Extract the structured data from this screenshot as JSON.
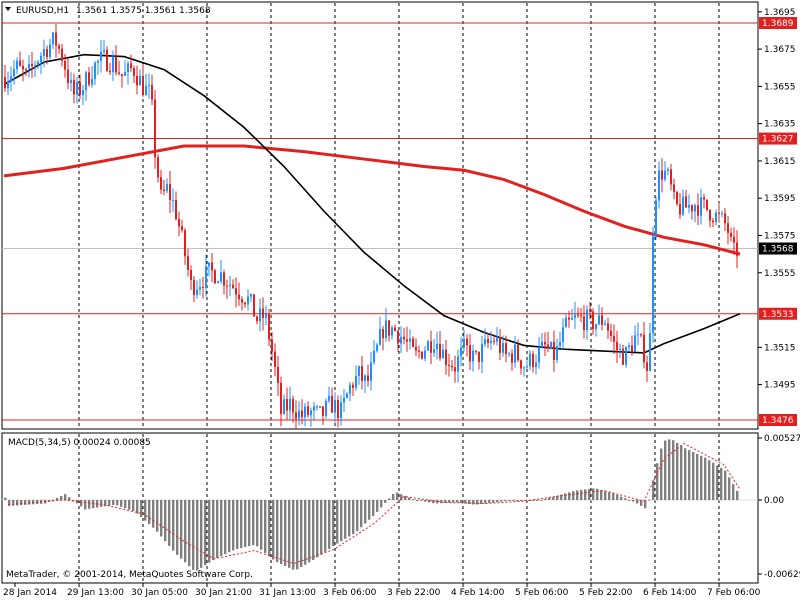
{
  "window": {
    "title": "EURUSD,H1",
    "ohlc": "1.3561 1.3575 1.3561 1.3568",
    "copyright": "MetaTrader, © 2001-2014, MetaQuotes Software Corp."
  },
  "chart_data": {
    "type": "candlestick",
    "symbol": "EURUSD",
    "timeframe": "H1",
    "grid": true,
    "price_axis": {
      "ylim": [
        1.3465,
        1.3702
      ],
      "ticks": [
        "1.3695",
        "1.3675",
        "1.3655",
        "1.3635",
        "1.3615",
        "1.3595",
        "1.3575",
        "1.3555",
        "1.3515",
        "1.3495"
      ]
    },
    "time_axis": {
      "ticks": [
        "28 Jan 2014",
        "29 Jan 13:00",
        "30 Jan 05:00",
        "30 Jan 21:00",
        "31 Jan 13:00",
        "3 Feb 06:00",
        "3 Feb 22:00",
        "4 Feb 14:00",
        "5 Feb 06:00",
        "5 Feb 22:00",
        "6 Feb 14:00",
        "7 Feb 06:00"
      ]
    },
    "horizontal_levels": [
      {
        "value": 1.3689,
        "label": "1.3689",
        "color": "#e32020"
      },
      {
        "value": 1.3627,
        "label": "1.3627",
        "color": "#e32020"
      },
      {
        "value": 1.3533,
        "label": "1.3533",
        "color": "#e32020"
      },
      {
        "value": 1.3476,
        "label": "1.3476",
        "color": "#e32020"
      }
    ],
    "current_price": {
      "value": 1.3568,
      "label": "1.3568"
    },
    "close_path": [
      [
        0,
        1.366
      ],
      [
        12,
        1.3665
      ],
      [
        22,
        1.366
      ],
      [
        30,
        1.3668
      ],
      [
        40,
        1.3675
      ],
      [
        50,
        1.368
      ],
      [
        58,
        1.367
      ],
      [
        68,
        1.365
      ],
      [
        78,
        1.3655
      ],
      [
        88,
        1.3665
      ],
      [
        98,
        1.367
      ],
      [
        108,
        1.3668
      ],
      [
        118,
        1.366
      ],
      [
        128,
        1.3665
      ],
      [
        138,
        1.3655
      ],
      [
        146,
        1.365
      ],
      [
        150,
        1.362
      ],
      [
        156,
        1.3595
      ],
      [
        162,
        1.36
      ],
      [
        170,
        1.359
      ],
      [
        178,
        1.357
      ],
      [
        186,
        1.3548
      ],
      [
        194,
        1.355
      ],
      [
        204,
        1.3555
      ],
      [
        214,
        1.3555
      ],
      [
        224,
        1.355
      ],
      [
        234,
        1.3545
      ],
      [
        244,
        1.354
      ],
      [
        252,
        1.353
      ],
      [
        260,
        1.3532
      ],
      [
        268,
        1.351
      ],
      [
        276,
        1.348
      ],
      [
        286,
        1.3485
      ],
      [
        296,
        1.3478
      ],
      [
        306,
        1.348
      ],
      [
        316,
        1.3478
      ],
      [
        326,
        1.3485
      ],
      [
        336,
        1.348
      ],
      [
        346,
        1.3495
      ],
      [
        354,
        1.35
      ],
      [
        362,
        1.3495
      ],
      [
        370,
        1.351
      ],
      [
        378,
        1.3525
      ],
      [
        388,
        1.3525
      ],
      [
        398,
        1.352
      ],
      [
        410,
        1.351
      ],
      [
        420,
        1.3515
      ],
      [
        430,
        1.352
      ],
      [
        440,
        1.351
      ],
      [
        450,
        1.3505
      ],
      [
        460,
        1.3515
      ],
      [
        470,
        1.3508
      ],
      [
        480,
        1.3515
      ],
      [
        490,
        1.352
      ],
      [
        500,
        1.351
      ],
      [
        510,
        1.3512
      ],
      [
        520,
        1.3505
      ],
      [
        530,
        1.351
      ],
      [
        540,
        1.3515
      ],
      [
        550,
        1.351
      ],
      [
        560,
        1.3525
      ],
      [
        570,
        1.353
      ],
      [
        580,
        1.353
      ],
      [
        590,
        1.3528
      ],
      [
        600,
        1.353
      ],
      [
        610,
        1.3515
      ],
      [
        620,
        1.351
      ],
      [
        630,
        1.352
      ],
      [
        638,
        1.3515
      ],
      [
        644,
        1.35
      ],
      [
        648,
        1.358
      ],
      [
        652,
        1.3605
      ],
      [
        658,
        1.361
      ],
      [
        664,
        1.3605
      ],
      [
        670,
        1.359
      ],
      [
        680,
        1.359
      ],
      [
        690,
        1.3592
      ],
      [
        700,
        1.359
      ],
      [
        712,
        1.3585
      ],
      [
        722,
        1.358
      ],
      [
        728,
        1.3565
      ],
      [
        734,
        1.3568
      ]
    ],
    "ma_black": [
      [
        0,
        1.3656
      ],
      [
        40,
        1.3668
      ],
      [
        80,
        1.3672
      ],
      [
        120,
        1.3671
      ],
      [
        160,
        1.3664
      ],
      [
        200,
        1.365
      ],
      [
        240,
        1.3633
      ],
      [
        280,
        1.3612
      ],
      [
        320,
        1.3588
      ],
      [
        360,
        1.3566
      ],
      [
        400,
        1.3548
      ],
      [
        440,
        1.3532
      ],
      [
        480,
        1.3523
      ],
      [
        520,
        1.3516
      ],
      [
        560,
        1.3514
      ],
      [
        600,
        1.3513
      ],
      [
        640,
        1.3512
      ],
      [
        660,
        1.3517
      ],
      [
        700,
        1.3525
      ],
      [
        736,
        1.3533
      ]
    ],
    "ma_red": [
      [
        0,
        1.3607
      ],
      [
        60,
        1.3611
      ],
      [
        120,
        1.3617
      ],
      [
        180,
        1.3623
      ],
      [
        240,
        1.3623
      ],
      [
        300,
        1.362
      ],
      [
        360,
        1.3616
      ],
      [
        420,
        1.3612
      ],
      [
        460,
        1.361
      ],
      [
        500,
        1.3605
      ],
      [
        540,
        1.3597
      ],
      [
        580,
        1.3588
      ],
      [
        620,
        1.358
      ],
      [
        660,
        1.3574
      ],
      [
        700,
        1.357
      ],
      [
        736,
        1.3565
      ]
    ],
    "macd": {
      "label": "MACD(5,34,5) 0.00024 0.00085",
      "ylim": [
        -0.0065,
        0.0055
      ],
      "ticks": [
        "0.00527",
        "0.00",
        "-0.00629"
      ],
      "histogram": [
        [
          4,
          -0.0005
        ],
        [
          40,
          -0.0003
        ],
        [
          60,
          0.0005
        ],
        [
          80,
          -0.0008
        ],
        [
          110,
          -0.0004
        ],
        [
          130,
          -0.001
        ],
        [
          150,
          -0.0025
        ],
        [
          170,
          -0.0045
        ],
        [
          190,
          -0.0061
        ],
        [
          210,
          -0.005
        ],
        [
          230,
          -0.0042
        ],
        [
          250,
          -0.0038
        ],
        [
          270,
          -0.0052
        ],
        [
          290,
          -0.006
        ],
        [
          310,
          -0.005
        ],
        [
          330,
          -0.0038
        ],
        [
          350,
          -0.0028
        ],
        [
          370,
          -0.0012
        ],
        [
          390,
          0.0007
        ],
        [
          410,
          0.0
        ],
        [
          430,
          -0.0003
        ],
        [
          450,
          -0.0002
        ],
        [
          470,
          -0.0004
        ],
        [
          490,
          -0.0002
        ],
        [
          510,
          0.0
        ],
        [
          530,
          -0.0001
        ],
        [
          550,
          0.0003
        ],
        [
          570,
          0.0008
        ],
        [
          590,
          0.001
        ],
        [
          610,
          0.0005
        ],
        [
          630,
          -0.0002
        ],
        [
          642,
          -0.0008
        ],
        [
          650,
          0.0025
        ],
        [
          658,
          0.005
        ],
        [
          666,
          0.0052
        ],
        [
          680,
          0.0044
        ],
        [
          700,
          0.0036
        ],
        [
          720,
          0.0025
        ],
        [
          736,
          0.0002
        ]
      ],
      "signal": [
        [
          4,
          -0.0004
        ],
        [
          60,
          0.0
        ],
        [
          100,
          -0.0004
        ],
        [
          140,
          -0.0012
        ],
        [
          180,
          -0.0035
        ],
        [
          210,
          -0.005
        ],
        [
          250,
          -0.0043
        ],
        [
          290,
          -0.0054
        ],
        [
          330,
          -0.0042
        ],
        [
          370,
          -0.002
        ],
        [
          400,
          0.0003
        ],
        [
          440,
          -0.0002
        ],
        [
          480,
          -0.0003
        ],
        [
          520,
          -0.0001
        ],
        [
          560,
          0.0004
        ],
        [
          600,
          0.0008
        ],
        [
          640,
          -0.0001
        ],
        [
          660,
          0.0035
        ],
        [
          680,
          0.0048
        ],
        [
          720,
          0.003
        ],
        [
          736,
          0.0009
        ]
      ]
    }
  },
  "colors": {
    "bull": "#1e90ff",
    "bear": "#e32020",
    "ma_black": "#000000",
    "ma_red": "#e32020",
    "level": "#e32020",
    "grid": "#000000",
    "hist": "#808080",
    "signal": "#e32020"
  }
}
